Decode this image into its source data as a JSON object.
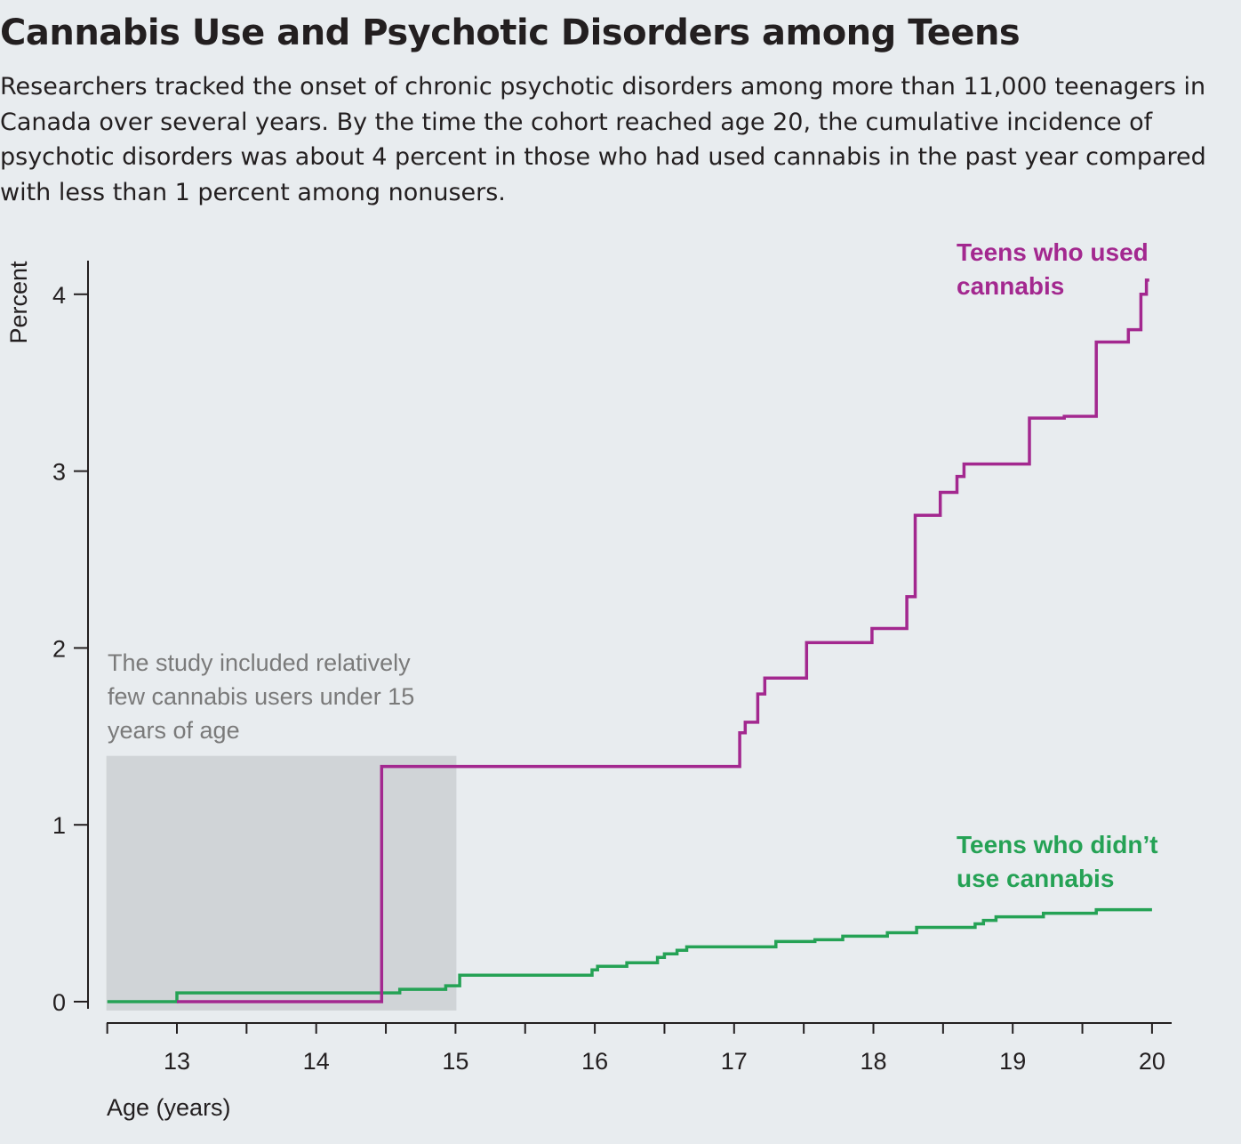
{
  "header": {
    "title": "Cannabis Use and Psychotic Disorders among Teens",
    "subtitle": "Researchers tracked the onset of chronic psychotic disorders among more than 11,000 teenagers in Canada over several years. By the time the cohort reached age 20, the cumulative incidence of psychotic disorders was about 4 percent in those who had used cannabis in the past year compared with less than 1 percent among nonusers."
  },
  "chart_data": {
    "type": "line",
    "step": true,
    "xlabel": "Age (years)",
    "ylabel": "Percent",
    "xlim": [
      12.5,
      20.1
    ],
    "ylim": [
      0,
      4.2
    ],
    "xticks": [
      13,
      14,
      15,
      16,
      17,
      18,
      19,
      20
    ],
    "yticks": [
      0,
      1,
      2,
      3,
      4
    ],
    "grid": false,
    "annotation": {
      "text_lines": [
        "The study included relatively",
        "few cannabis users under 15",
        "years of age"
      ],
      "shaded_x": [
        12.5,
        15.0
      ],
      "shaded_y": [
        -0.05,
        1.39
      ],
      "color": "#d0d4d7"
    },
    "series": [
      {
        "label_lines": [
          "Teens who used",
          "cannabis"
        ],
        "color": "#a3288f",
        "x": [
          13.0,
          14.47,
          14.47,
          17.04,
          17.04,
          17.08,
          17.08,
          17.17,
          17.17,
          17.22,
          17.22,
          17.52,
          17.52,
          17.99,
          17.99,
          18.24,
          18.24,
          18.3,
          18.3,
          18.48,
          18.48,
          18.6,
          18.6,
          18.65,
          18.65,
          19.12,
          19.12,
          19.37,
          19.37,
          19.6,
          19.6,
          19.83,
          19.83,
          19.92,
          19.92,
          19.96,
          19.96,
          19.98
        ],
        "y": [
          0.0,
          0.0,
          1.33,
          1.33,
          1.52,
          1.52,
          1.58,
          1.58,
          1.74,
          1.74,
          1.83,
          1.83,
          2.03,
          2.03,
          2.11,
          2.11,
          2.29,
          2.29,
          2.75,
          2.75,
          2.88,
          2.88,
          2.97,
          2.97,
          3.04,
          3.04,
          3.3,
          3.3,
          3.31,
          3.31,
          3.73,
          3.73,
          3.8,
          3.8,
          4.0,
          4.0,
          4.08,
          4.08
        ]
      },
      {
        "label_lines": [
          "Teens who didn’t",
          "use cannabis"
        ],
        "color": "#25a255",
        "x": [
          12.5,
          13.0,
          13.0,
          14.6,
          14.6,
          14.93,
          14.93,
          15.03,
          15.03,
          15.98,
          15.98,
          16.02,
          16.02,
          16.23,
          16.23,
          16.45,
          16.45,
          16.5,
          16.5,
          16.59,
          16.59,
          16.66,
          16.66,
          17.3,
          17.3,
          17.58,
          17.58,
          17.78,
          17.78,
          18.1,
          18.1,
          18.31,
          18.31,
          18.73,
          18.73,
          18.79,
          18.79,
          18.88,
          18.88,
          19.22,
          19.22,
          19.6,
          19.6,
          20.0
        ],
        "y": [
          0.0,
          0.0,
          0.05,
          0.05,
          0.07,
          0.07,
          0.09,
          0.09,
          0.15,
          0.15,
          0.18,
          0.18,
          0.2,
          0.2,
          0.22,
          0.22,
          0.25,
          0.25,
          0.27,
          0.27,
          0.29,
          0.29,
          0.31,
          0.31,
          0.34,
          0.34,
          0.35,
          0.35,
          0.37,
          0.37,
          0.39,
          0.39,
          0.42,
          0.42,
          0.44,
          0.44,
          0.46,
          0.46,
          0.48,
          0.48,
          0.5,
          0.5,
          0.52,
          0.52
        ]
      }
    ]
  }
}
